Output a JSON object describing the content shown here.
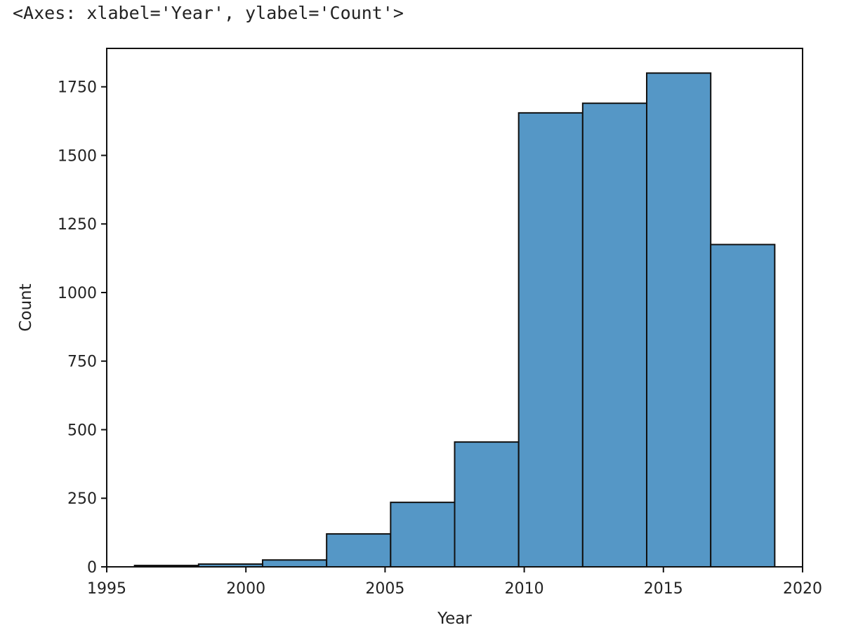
{
  "output_repr": "<Axes: xlabel='Year', ylabel='Count'>",
  "chart_data": {
    "type": "bar",
    "title": "",
    "xlabel": "Year",
    "ylabel": "Count",
    "xlim": [
      1995,
      2020
    ],
    "ylim": [
      0,
      1890
    ],
    "grid": false,
    "bar_color": "#5597c6",
    "edge_color": "#111111",
    "bins": [
      {
        "x0": 1996.0,
        "x1": 1998.3,
        "count": 5
      },
      {
        "x0": 1998.3,
        "x1": 2000.6,
        "count": 10
      },
      {
        "x0": 2000.6,
        "x1": 2002.9,
        "count": 25
      },
      {
        "x0": 2002.9,
        "x1": 2005.2,
        "count": 120
      },
      {
        "x0": 2005.2,
        "x1": 2007.5,
        "count": 235
      },
      {
        "x0": 2007.5,
        "x1": 2009.8,
        "count": 455
      },
      {
        "x0": 2009.8,
        "x1": 2012.1,
        "count": 1655
      },
      {
        "x0": 2012.1,
        "x1": 2014.4,
        "count": 1690
      },
      {
        "x0": 2014.4,
        "x1": 2016.7,
        "count": 1800
      },
      {
        "x0": 2016.7,
        "x1": 2019.0,
        "count": 1175
      }
    ],
    "x_ticks": [
      1995,
      2000,
      2005,
      2010,
      2015,
      2020
    ],
    "y_ticks": [
      0,
      250,
      500,
      750,
      1000,
      1250,
      1500,
      1750
    ]
  }
}
